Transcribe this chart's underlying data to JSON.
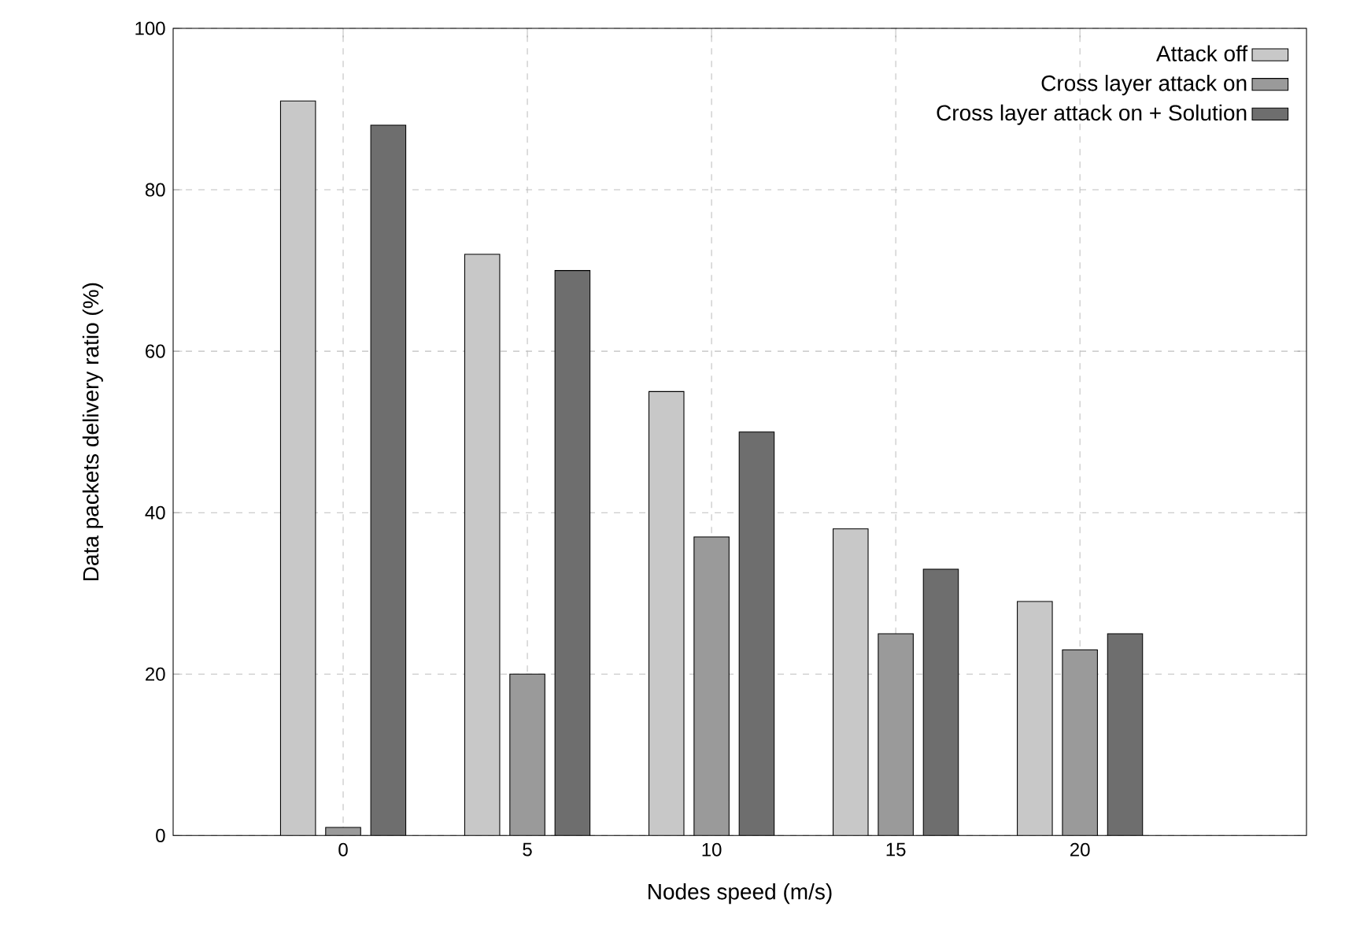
{
  "chart_data": {
    "type": "bar",
    "xlabel": "Nodes speed (m/s)",
    "ylabel": "Data packets delivery ratio (%)",
    "categories": [
      "0",
      "5",
      "10",
      "15",
      "20"
    ],
    "series": [
      {
        "name": "Attack off",
        "color": "#c8c8c8",
        "values": [
          91,
          72,
          55,
          38,
          29
        ]
      },
      {
        "name": "Cross layer attack on",
        "color": "#9a9a9a",
        "values": [
          1,
          20,
          37,
          25,
          23
        ]
      },
      {
        "name": "Cross layer attack on + Solution",
        "color": "#6e6e6e",
        "values": [
          88,
          70,
          50,
          33,
          25
        ]
      }
    ],
    "ylim": [
      0,
      100
    ],
    "yticks": [
      0,
      20,
      40,
      60,
      80,
      100
    ],
    "grid": true,
    "legend": "top right"
  }
}
